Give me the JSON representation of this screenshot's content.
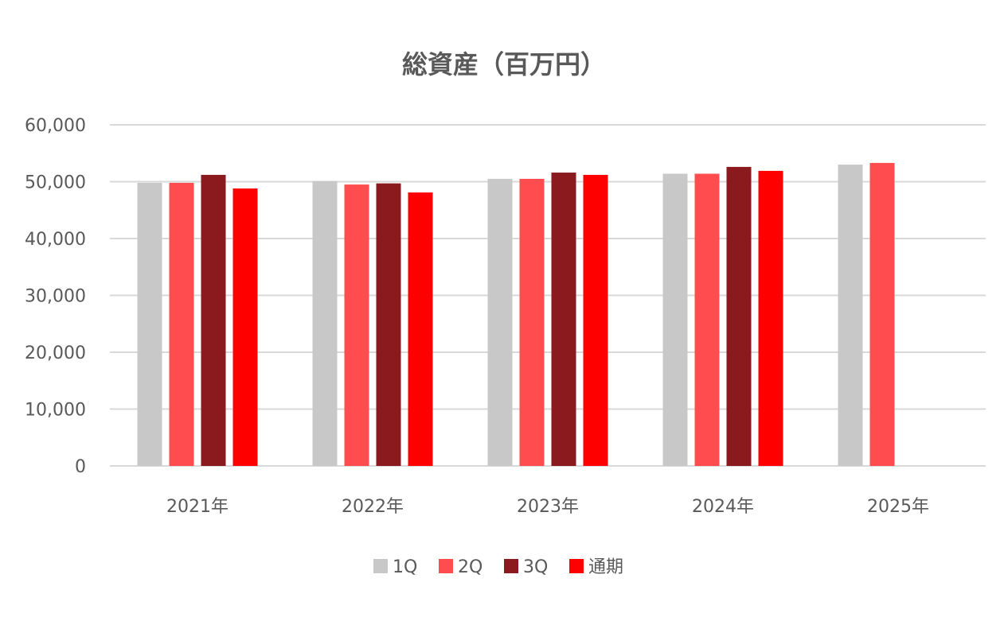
{
  "chart_data": {
    "type": "bar",
    "title": "総資産（百万円）",
    "xlabel": "",
    "ylabel": "",
    "categories": [
      "2021年",
      "2022年",
      "2023年",
      "2024年",
      "2025年"
    ],
    "ylim": [
      0,
      60000
    ],
    "yticks": [
      0,
      10000,
      20000,
      30000,
      40000,
      50000,
      60000
    ],
    "ytick_labels": [
      "0",
      "10,000",
      "20,000",
      "30,000",
      "40,000",
      "50,000",
      "60,000"
    ],
    "grid": true,
    "legend_position": "bottom",
    "series": [
      {
        "name": "1Q",
        "color": "#c8c8c8",
        "values": [
          49800,
          50100,
          50500,
          51400,
          53000
        ]
      },
      {
        "name": "2Q",
        "color": "#ff4d4f",
        "values": [
          49800,
          49500,
          50500,
          51400,
          53300
        ]
      },
      {
        "name": "3Q",
        "color": "#8b1a1f",
        "values": [
          51200,
          49700,
          51600,
          52600,
          null
        ]
      },
      {
        "name": "通期",
        "color": "#ff0000",
        "values": [
          48800,
          48100,
          51200,
          51900,
          null
        ]
      }
    ]
  }
}
